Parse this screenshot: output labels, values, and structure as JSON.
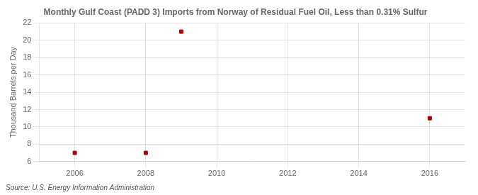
{
  "chart_data": {
    "type": "scatter",
    "title": "Monthly Gulf Coast (PADD 3) Imports from Norway of Residual Fuel Oil, Less than 0.31% Sulfur",
    "ylabel": "Thousand Barrels per Day",
    "annotations": [
      "Source: U.S. Energy Information Administration"
    ],
    "x": [
      2006.0,
      2008.0,
      2009.0,
      2016.0
    ],
    "values": [
      7.0,
      7.0,
      21.0,
      11.0
    ],
    "color": "#aa0000",
    "marker": "square",
    "xlim": [
      2005,
      2017
    ],
    "ylim": [
      6,
      22
    ],
    "xticks": [
      2006,
      2008,
      2010,
      2012,
      2014,
      2016
    ],
    "yticks": [
      6,
      8,
      10,
      12,
      14,
      16,
      18,
      20,
      22
    ],
    "grid": true
  }
}
